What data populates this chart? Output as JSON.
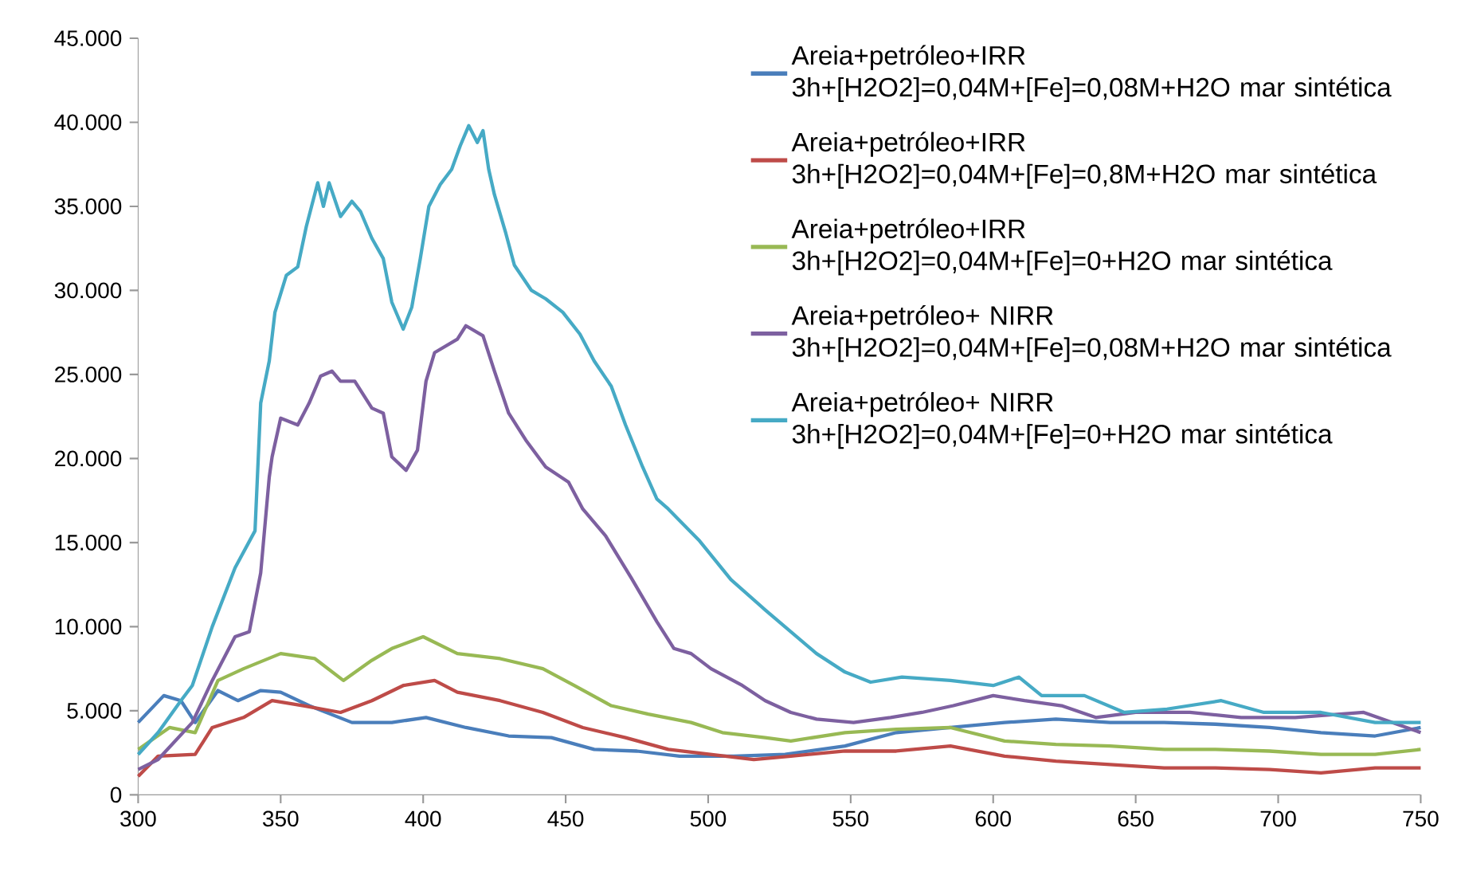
{
  "chart_data": {
    "type": "line",
    "xlim": [
      300,
      750
    ],
    "ylim": [
      0,
      45000
    ],
    "xticks": [
      300,
      350,
      400,
      450,
      500,
      550,
      600,
      650,
      700,
      750
    ],
    "yticks": [
      {
        "value": 0,
        "label": "0"
      },
      {
        "value": 5000,
        "label": "5.000"
      },
      {
        "value": 10000,
        "label": "10.000"
      },
      {
        "value": 15000,
        "label": "15.000"
      },
      {
        "value": 20000,
        "label": "20.000"
      },
      {
        "value": 25000,
        "label": "25.000"
      },
      {
        "value": 30000,
        "label": "30.000"
      },
      {
        "value": 35000,
        "label": "35.000"
      },
      {
        "value": 40000,
        "label": "40.000"
      },
      {
        "value": 45000,
        "label": "45.000"
      }
    ],
    "legend": "top right",
    "grid": false,
    "line_style": "solid",
    "series": [
      {
        "name": "Areia+petróleo+IRR 3h+[H2O2]=0,04M+[Fe]=0,08M+H2O mar sintética",
        "color": "#4a7ebb",
        "x": [
          300,
          309,
          315,
          320,
          328,
          335,
          343,
          350,
          360,
          375,
          389,
          401,
          415,
          430,
          445,
          460,
          475,
          490,
          509,
          527,
          548,
          566,
          585,
          604,
          622,
          641,
          660,
          678,
          697,
          715,
          734,
          750
        ],
        "values": [
          4300,
          5900,
          5600,
          4300,
          6200,
          5600,
          6200,
          6100,
          5300,
          4300,
          4300,
          4600,
          4000,
          3500,
          3400,
          2700,
          2600,
          2300,
          2300,
          2400,
          2900,
          3700,
          4000,
          4300,
          4500,
          4300,
          4300,
          4200,
          4000,
          3700,
          3500,
          4000
        ]
      },
      {
        "name": "Areia+petróleo+IRR 3h+[H2O2]=0,04M+[Fe]=0,8M+H2O mar sintética",
        "color": "#be4b48",
        "x": [
          300,
          307,
          320,
          326,
          337,
          347,
          358,
          371,
          382,
          393,
          404,
          412,
          427,
          442,
          456,
          471,
          486,
          501,
          516,
          529,
          548,
          566,
          585,
          604,
          622,
          641,
          660,
          678,
          697,
          715,
          734,
          750
        ],
        "values": [
          1100,
          2300,
          2400,
          4000,
          4600,
          5600,
          5300,
          4900,
          5600,
          6500,
          6800,
          6100,
          5600,
          4900,
          4000,
          3400,
          2700,
          2400,
          2100,
          2300,
          2600,
          2600,
          2900,
          2300,
          2000,
          1800,
          1600,
          1600,
          1500,
          1300,
          1600,
          1600
        ]
      },
      {
        "name": "Areia+petróleo+IRR 3h+[H2O2]=0,04M+[Fe]=0+H2O mar sintética",
        "color": "#98b954",
        "x": [
          300,
          311,
          320,
          328,
          337,
          350,
          362,
          372,
          382,
          389,
          400,
          412,
          427,
          442,
          453,
          466,
          479,
          494,
          505,
          520,
          529,
          548,
          566,
          585,
          604,
          622,
          641,
          660,
          678,
          697,
          715,
          734,
          750
        ],
        "values": [
          2700,
          4000,
          3700,
          6800,
          7500,
          8400,
          8100,
          6800,
          8000,
          8700,
          9400,
          8400,
          8100,
          7500,
          6500,
          5300,
          4800,
          4300,
          3700,
          3400,
          3200,
          3700,
          3900,
          4000,
          3200,
          3000,
          2900,
          2700,
          2700,
          2600,
          2400,
          2400,
          2700
        ]
      },
      {
        "name": "Areia+petróleo+ NIRR 3h+[H2O2]=0,04M+[Fe]=0,08M+H2O mar sintética",
        "color": "#7d60a0",
        "x": [
          300,
          307,
          319,
          326,
          334,
          339,
          343,
          346,
          347,
          350,
          356,
          360,
          364,
          368,
          371,
          376,
          382,
          386,
          389,
          394,
          398,
          401,
          404,
          412,
          415,
          421,
          425,
          430,
          436,
          443,
          451,
          456,
          464,
          473,
          482,
          488,
          494,
          501,
          512,
          520,
          529,
          538,
          551,
          564,
          575,
          586,
          600,
          611,
          624,
          636,
          650,
          669,
          687,
          706,
          730,
          750
        ],
        "values": [
          1500,
          2100,
          4300,
          6800,
          9400,
          9700,
          13200,
          18900,
          20100,
          22400,
          22000,
          23300,
          24900,
          25200,
          24600,
          24600,
          23000,
          22700,
          20100,
          19300,
          20500,
          24600,
          26300,
          27100,
          27900,
          27300,
          25200,
          22700,
          21100,
          19500,
          18600,
          17000,
          15400,
          12900,
          10300,
          8700,
          8400,
          7500,
          6500,
          5600,
          4900,
          4500,
          4300,
          4600,
          4900,
          5300,
          5900,
          5600,
          5300,
          4600,
          4900,
          4900,
          4600,
          4600,
          4900,
          3700
        ]
      },
      {
        "name": "Areia+petróleo+ NIRR 3h+[H2O2]=0,04M+[Fe]=0+H2O mar sintética",
        "color": "#46aac5",
        "x": [
          300,
          307,
          315,
          319,
          326,
          334,
          341,
          343,
          346,
          348,
          352,
          356,
          359,
          363,
          365,
          367,
          371,
          375,
          378,
          382,
          386,
          389,
          393,
          396,
          399,
          402,
          406,
          410,
          413,
          416,
          419,
          421,
          423,
          425,
          429,
          432,
          438,
          443,
          449,
          455,
          460,
          466,
          471,
          477,
          482,
          486,
          497,
          508,
          520,
          529,
          538,
          548,
          557,
          568,
          585,
          600,
          609,
          617,
          632,
          646,
          661,
          680,
          695,
          715,
          734,
          750
        ],
        "values": [
          2400,
          3700,
          5600,
          6500,
          10000,
          13500,
          15700,
          23300,
          25800,
          28700,
          30900,
          31400,
          33800,
          36400,
          35000,
          36400,
          34400,
          35300,
          34700,
          33100,
          31900,
          29300,
          27700,
          29000,
          31900,
          35000,
          36300,
          37200,
          38600,
          39800,
          38800,
          39500,
          37200,
          35700,
          33400,
          31500,
          30000,
          29500,
          28700,
          27400,
          25800,
          24300,
          22000,
          19500,
          17600,
          17000,
          15100,
          12800,
          11000,
          9700,
          8400,
          7300,
          6700,
          7000,
          6800,
          6500,
          7000,
          5900,
          5900,
          4900,
          5100,
          5600,
          4900,
          4900,
          4300,
          4300
        ]
      }
    ]
  }
}
